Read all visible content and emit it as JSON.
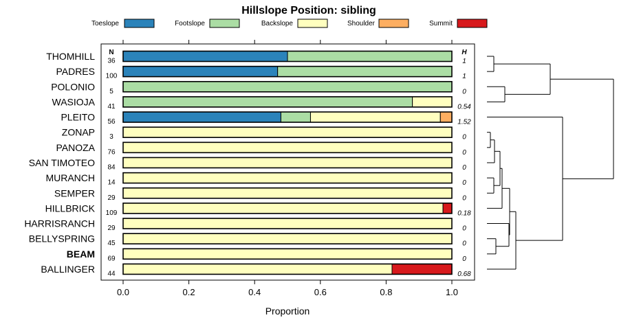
{
  "chart_data": {
    "type": "bar",
    "subtype": "stacked-horizontal-proportion",
    "title": "Hillslope Position: sibling",
    "xlabel": "Proportion",
    "xlim": [
      0,
      1
    ],
    "xticks": [
      "0.0",
      "0.2",
      "0.4",
      "0.6",
      "0.8",
      "1.0"
    ],
    "n_header": "N",
    "h_header": "H",
    "legend": [
      {
        "name": "Toeslope",
        "color": "#2b83ba"
      },
      {
        "name": "Footslope",
        "color": "#abdda4"
      },
      {
        "name": "Backslope",
        "color": "#ffffbf"
      },
      {
        "name": "Shoulder",
        "color": "#fdae61"
      },
      {
        "name": "Summit",
        "color": "#d7191c"
      }
    ],
    "rows": [
      {
        "label": "THOMHILL",
        "n": "36",
        "h": "1",
        "bold": false,
        "values": [
          0.5,
          0.5,
          0,
          0,
          0
        ]
      },
      {
        "label": "PADRES",
        "n": "100",
        "h": "1",
        "bold": false,
        "values": [
          0.47,
          0.53,
          0,
          0,
          0
        ]
      },
      {
        "label": "POLONIO",
        "n": "5",
        "h": "0",
        "bold": false,
        "values": [
          0,
          1.0,
          0,
          0,
          0
        ]
      },
      {
        "label": "WASIOJA",
        "n": "41",
        "h": "0.54",
        "bold": false,
        "values": [
          0,
          0.88,
          0.12,
          0,
          0
        ]
      },
      {
        "label": "PLEITO",
        "n": "56",
        "h": "1.52",
        "bold": false,
        "values": [
          0.48,
          0.09,
          0.395,
          0.035,
          0
        ]
      },
      {
        "label": "ZONAP",
        "n": "3",
        "h": "0",
        "bold": false,
        "values": [
          0,
          0,
          1.0,
          0,
          0
        ]
      },
      {
        "label": "PANOZA",
        "n": "76",
        "h": "0",
        "bold": false,
        "values": [
          0,
          0,
          1.0,
          0,
          0
        ]
      },
      {
        "label": "SAN TIMOTEO",
        "n": "84",
        "h": "0",
        "bold": false,
        "values": [
          0,
          0,
          1.0,
          0,
          0
        ]
      },
      {
        "label": "MURANCH",
        "n": "14",
        "h": "0",
        "bold": false,
        "values": [
          0,
          0,
          1.0,
          0,
          0
        ]
      },
      {
        "label": "SEMPER",
        "n": "29",
        "h": "0",
        "bold": false,
        "values": [
          0,
          0,
          1.0,
          0,
          0
        ]
      },
      {
        "label": "HILLBRICK",
        "n": "109",
        "h": "0.18",
        "bold": false,
        "values": [
          0,
          0,
          0.973,
          0,
          0.027
        ]
      },
      {
        "label": "HARRISRANCH",
        "n": "29",
        "h": "0",
        "bold": false,
        "values": [
          0,
          0,
          1.0,
          0,
          0
        ]
      },
      {
        "label": "BELLYSPRING",
        "n": "45",
        "h": "0",
        "bold": false,
        "values": [
          0,
          0,
          1.0,
          0,
          0
        ]
      },
      {
        "label": "BEAM",
        "n": "69",
        "h": "0",
        "bold": true,
        "values": [
          0,
          0,
          1.0,
          0,
          0
        ]
      },
      {
        "label": "BALLINGER",
        "n": "44",
        "h": "0.68",
        "bold": false,
        "values": [
          0,
          0,
          0.818,
          0,
          0.182
        ]
      }
    ]
  }
}
